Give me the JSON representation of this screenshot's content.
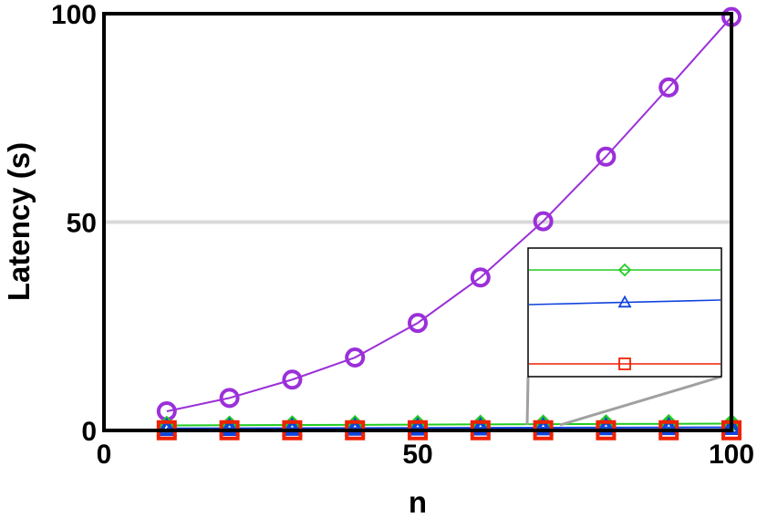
{
  "chart_data": {
    "type": "line",
    "xlabel": "n",
    "ylabel": "Latency (s)",
    "xlim": [
      0,
      100
    ],
    "ylim": [
      0,
      100
    ],
    "x_ticks": [
      "0",
      "50",
      "100"
    ],
    "y_ticks": [
      "0",
      "50",
      "100"
    ],
    "grid": "horizontal at 50",
    "x": [
      10,
      20,
      30,
      40,
      50,
      60,
      70,
      80,
      90,
      100
    ],
    "series": [
      {
        "marker": "circle",
        "color": "#9b30d9",
        "values": [
          4.6,
          7.8,
          12.2,
          17.5,
          25.8,
          36.7,
          50.2,
          65.7,
          82.3,
          99.2
        ]
      },
      {
        "marker": "diamond",
        "color": "#22cc22",
        "values": [
          1.2,
          1.25,
          1.3,
          1.35,
          1.4,
          1.45,
          1.5,
          1.55,
          1.6,
          1.65
        ]
      },
      {
        "marker": "triangle",
        "color": "#1144dd",
        "values": [
          0.5,
          0.52,
          0.55,
          0.58,
          0.6,
          0.63,
          0.66,
          0.69,
          0.72,
          0.75
        ]
      },
      {
        "marker": "square",
        "color": "#ee2200",
        "values": [
          0.05,
          0.05,
          0.05,
          0.05,
          0.05,
          0.05,
          0.05,
          0.05,
          0.05,
          0.05
        ]
      }
    ],
    "inset": {
      "placement": "lower-right, zooming near x=70",
      "shown_point_x": 70
    }
  }
}
